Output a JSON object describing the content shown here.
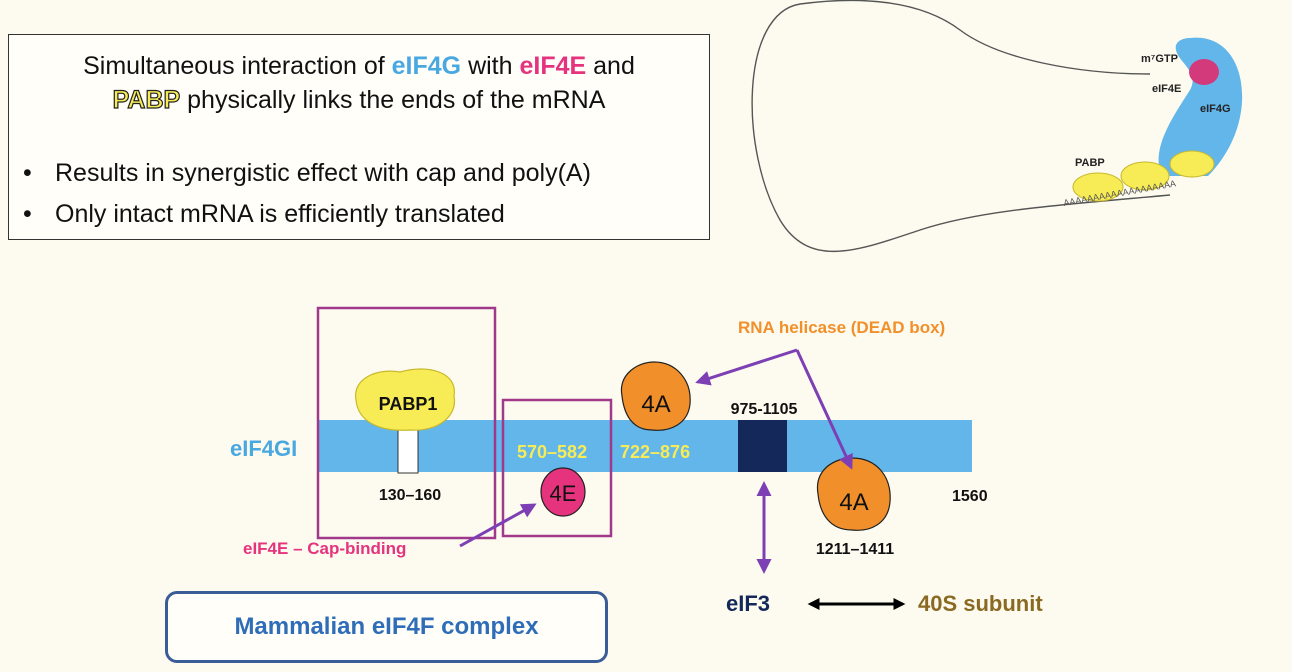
{
  "summary": {
    "line1_pre": "Simultaneous interaction of ",
    "eif4g": "eIF4G",
    "line1_mid": " with ",
    "eif4e": "eIF4E",
    "line1_post": " and",
    "pabp": "PABP",
    "line2_post": " physically links the ends of the mRNA",
    "bullet_symbol": "•",
    "bullets": [
      "Results in synergistic effect with cap and poly(A)",
      "Only intact mRNA is efficiently translated"
    ]
  },
  "mrna_loop": {
    "cap": "m⁷GTP",
    "eif4e": "eIF4E",
    "eif4g": "eIF4G",
    "pabp": "PABP",
    "polya": "AAAAAAAAAAAAAAAAAAA"
  },
  "domain_map": {
    "protein_label": "eIF4GI",
    "pabp_label": "PABP1",
    "pabp_range": "130–160",
    "range_4e": "570–582",
    "range_4a1": "722–876",
    "eif3_range": "975-1105",
    "range_4a2": "1211–1411",
    "end_residue": "1560",
    "node_4a": "4A",
    "node_4e": "4E",
    "helicase_note": "RNA helicase (DEAD box)",
    "cap_binding_note": "eIF4E – Cap-binding",
    "eif3": "eIF3",
    "subunit_40s": "40S subunit"
  },
  "complex_title": "Mammalian eIF4F complex",
  "colors": {
    "eif4g_blue": "#62b6ea",
    "eif4e_pink": "#e5337e",
    "pabp_yellow": "#f7ec56",
    "helicase_orange": "#f1902b",
    "box_purple": "#a0398b",
    "arrow_purple": "#7d3fb4",
    "eif3_navy": "#14295a",
    "brown_40s": "#8a6a22"
  }
}
